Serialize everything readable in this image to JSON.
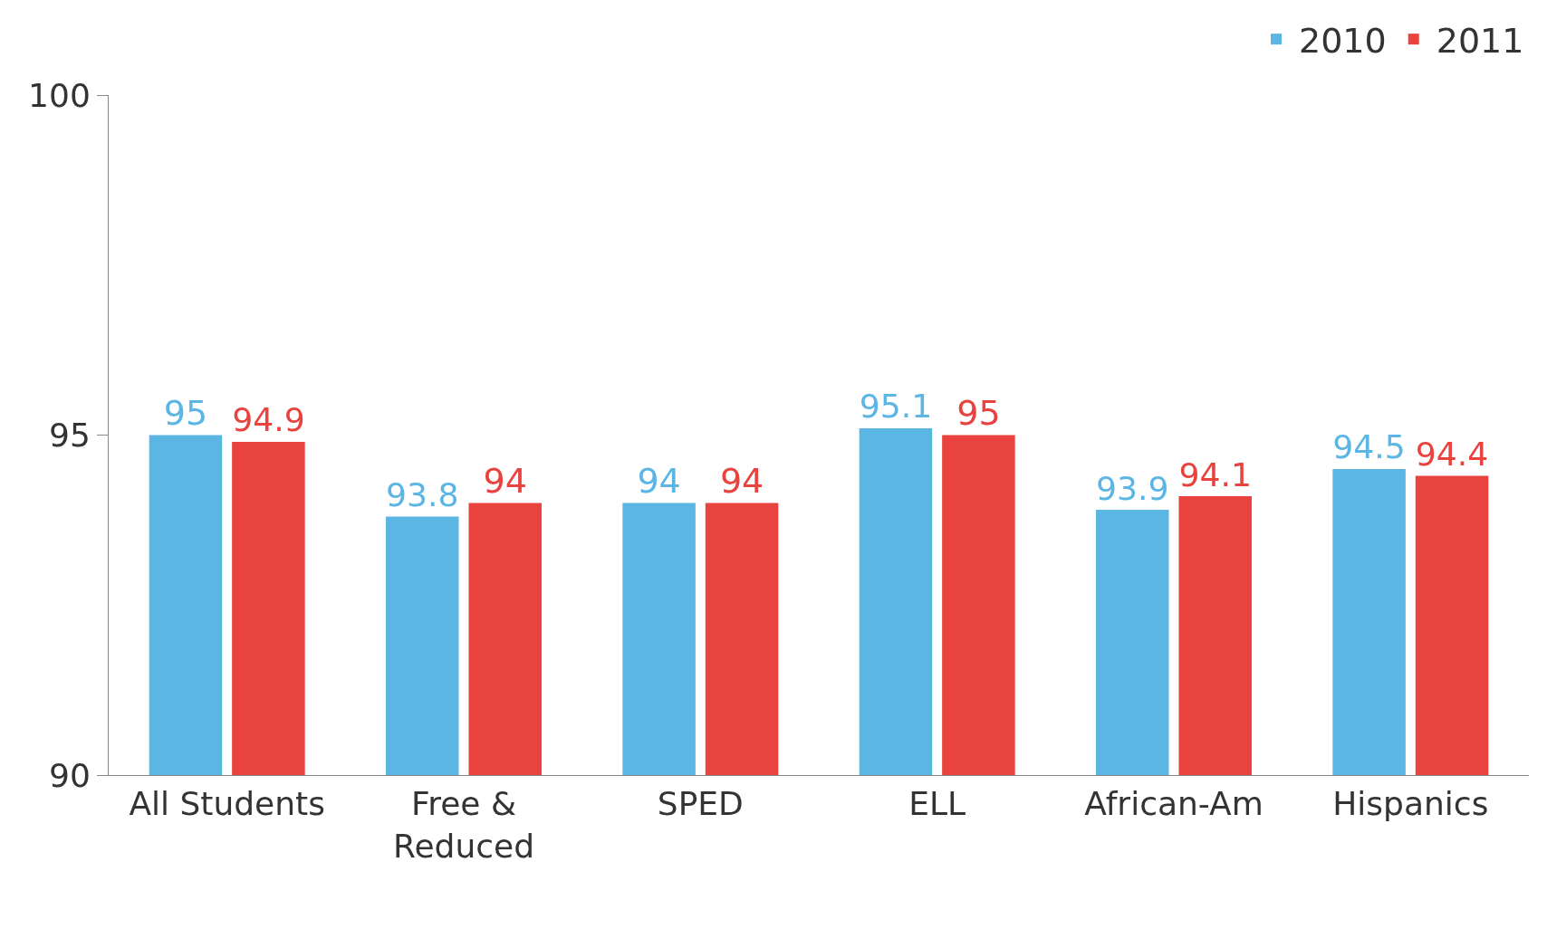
{
  "chart_data": {
    "type": "bar",
    "categories": [
      "All Students",
      "Free &\nReduced",
      "SPED",
      "ELL",
      "African-Am",
      "Hispanics"
    ],
    "series": [
      {
        "name": "2010",
        "color": "#5cb6e4",
        "values": [
          95,
          93.8,
          94,
          95.1,
          93.9,
          94.5
        ]
      },
      {
        "name": "2011",
        "color": "#e8433f",
        "values": [
          94.9,
          94,
          94,
          95,
          94.1,
          94.4
        ]
      }
    ],
    "ylim": [
      90,
      100
    ],
    "yticks": [
      90,
      95,
      100
    ],
    "data_labels": true,
    "legend": "top right",
    "grid": false
  }
}
